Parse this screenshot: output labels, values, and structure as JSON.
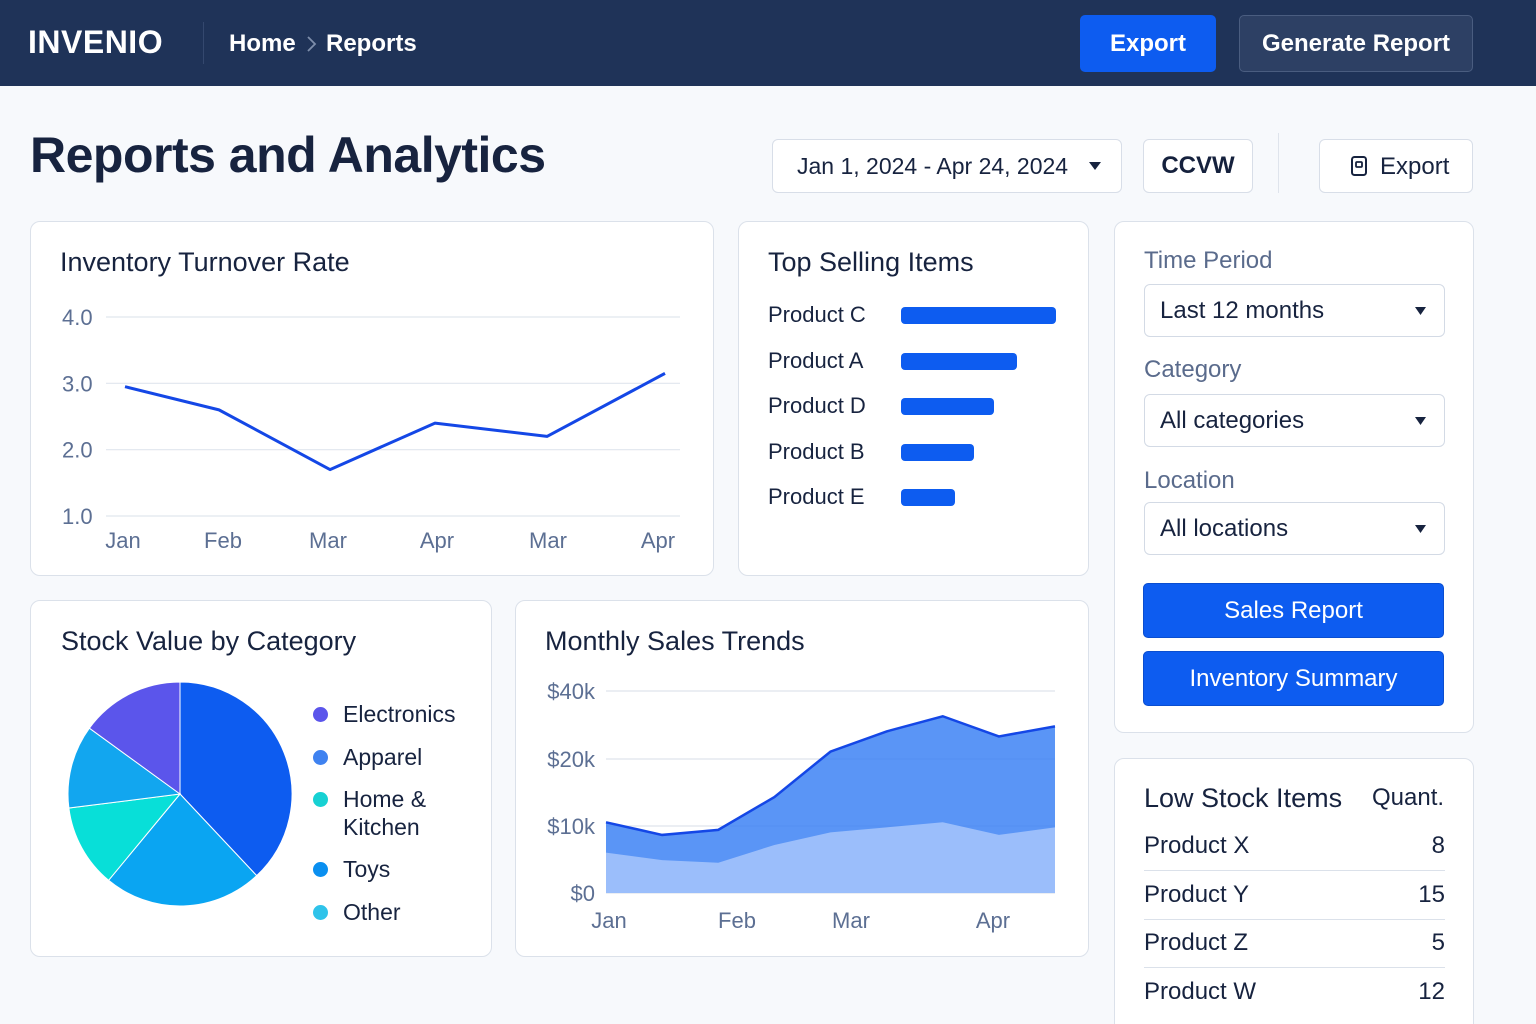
{
  "app": {
    "brand": "INVENIO",
    "breadcrumb": [
      "Home",
      "Reports"
    ],
    "top_export_label": "Export",
    "generate_label": "Generate Report"
  },
  "header": {
    "title": "Reports and Analytics",
    "date_range": "Jan 1, 2024 - Apr 24, 2024",
    "ccvw_label": "CCVW",
    "export_label": "Export"
  },
  "turnover": {
    "title": "Inventory Turnover Rate"
  },
  "top_selling": {
    "title": "Top Selling Items",
    "items": [
      {
        "label": "Product C",
        "value": 1.0
      },
      {
        "label": "Product A",
        "value": 0.75
      },
      {
        "label": "Product D",
        "value": 0.6
      },
      {
        "label": "Product B",
        "value": 0.47
      },
      {
        "label": "Product E",
        "value": 0.35
      }
    ],
    "bar_color": "#0d5cf0"
  },
  "stock_value": {
    "title": "Stock Value by Category"
  },
  "monthly_sales": {
    "title": "Monthly Sales Trends"
  },
  "filters": {
    "time_period_label": "Time Period",
    "time_period_value": "Last 12 months",
    "category_label": "Category",
    "category_value": "All categories",
    "location_label": "Location",
    "location_value": "All locations",
    "sales_report_label": "Sales Report",
    "inventory_summary_label": "Inventory Summary"
  },
  "low_stock": {
    "title": "Low Stock Items",
    "quantity_header": "Quant.",
    "rows": [
      {
        "name": "Product X",
        "qty": "8"
      },
      {
        "name": "Product Y",
        "qty": "15"
      },
      {
        "name": "Product Z",
        "qty": "5"
      },
      {
        "name": "Product W",
        "qty": "12"
      }
    ]
  },
  "icons": {
    "caret": "caret-down-icon",
    "breadcrumb_separator": "chevron-right-icon",
    "export": "document-icon"
  },
  "colors": {
    "topbar": "#1f3358",
    "accent": "#0d5cf0",
    "line": "#1447e6"
  },
  "chart_data": [
    {
      "type": "line",
      "title": "Inventory Turnover Rate",
      "categories": [
        "Jan",
        "Feb",
        "Mar",
        "Apr",
        "Mar",
        "Apr"
      ],
      "y_ticks": [
        "1.0",
        "2.0",
        "3.0",
        "4.0"
      ],
      "ylim": [
        1.0,
        4.0
      ],
      "values": [
        2.95,
        2.6,
        1.7,
        2.4,
        2.2,
        3.15
      ],
      "grid": true
    },
    {
      "type": "bar",
      "orientation": "horizontal",
      "title": "Top Selling Items",
      "categories": [
        "Product C",
        "Product A",
        "Product D",
        "Product B",
        "Product E"
      ],
      "values": [
        1.0,
        0.75,
        0.6,
        0.47,
        0.35
      ]
    },
    {
      "type": "pie",
      "title": "Stock Value by Category",
      "legend_position": "right",
      "slices": [
        {
          "label": "Toys",
          "value": 38,
          "color": "#0d5cf0"
        },
        {
          "label": "Apparel",
          "value": 23,
          "color": "#0aa5f2"
        },
        {
          "label": "Home & Kitchen",
          "value": 12,
          "color": "#08dfd8"
        },
        {
          "label": "Other",
          "value": 12,
          "color": "#12a6ef"
        },
        {
          "label": "Electronics",
          "value": 15,
          "color": "#5b55eb"
        }
      ],
      "legend": [
        {
          "label": "Electronics",
          "color": "#5b55eb"
        },
        {
          "label": "Apparel",
          "color": "#3f82f0"
        },
        {
          "label": "Home &\nKitchen",
          "color": "#17d1d3"
        },
        {
          "label": "Toys",
          "color": "#0a8ff0"
        },
        {
          "label": "Other",
          "color": "#2fc3ea"
        }
      ]
    },
    {
      "type": "area",
      "title": "Monthly Sales Trends",
      "x_ticks": [
        "Jan",
        "Feb",
        "Mar",
        "Apr"
      ],
      "y_ticks": [
        "$0",
        "$10k",
        "$20k",
        "$40k"
      ],
      "series": [
        {
          "color": "#3d82f4",
          "values": [
            14,
            11.5,
            12.5,
            19,
            28,
            32,
            35,
            31,
            33
          ]
        },
        {
          "color": "#a7c6fb",
          "values": [
            8,
            6.5,
            6,
            9.5,
            12,
            13,
            14,
            11.5,
            13
          ]
        }
      ],
      "grid": true
    }
  ]
}
